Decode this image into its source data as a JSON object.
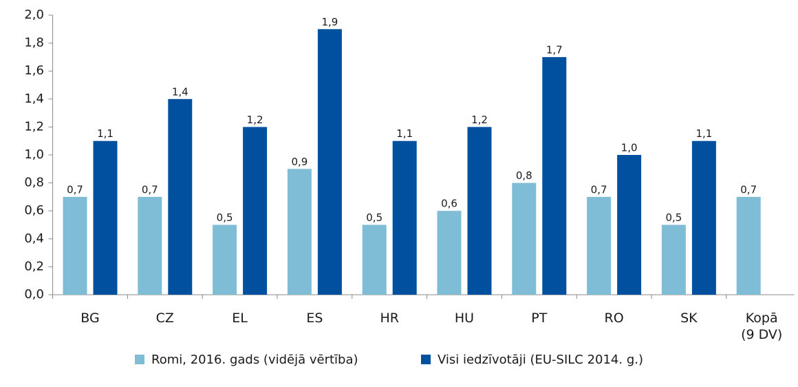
{
  "chart_data": {
    "type": "bar",
    "categories": [
      "BG",
      "CZ",
      "EL",
      "ES",
      "HR",
      "HU",
      "PT",
      "RO",
      "SK",
      "Kopā (9 DV)"
    ],
    "series": [
      {
        "name": "Romi, 2016. gads (vidējā vērtība)",
        "color": "#7fbcd6",
        "values": [
          0.7,
          0.7,
          0.5,
          0.9,
          0.5,
          0.6,
          0.8,
          0.7,
          0.5,
          0.7
        ],
        "value_labels": [
          "0,7",
          "0,7",
          "0,5",
          "0,9",
          "0,5",
          "0,6",
          "0,8",
          "0,7",
          "0,5",
          "0,7"
        ]
      },
      {
        "name": "Visi iedzīvotāji (EU-SILC 2014. g.)",
        "color": "#0050a0",
        "values": [
          1.1,
          1.4,
          1.2,
          1.9,
          1.1,
          1.2,
          1.7,
          1.0,
          1.1,
          null
        ],
        "value_labels": [
          "1,1",
          "1,4",
          "1,2",
          "1,9",
          "1,1",
          "1,2",
          "1,7",
          "1,0",
          "1,1",
          null
        ]
      }
    ],
    "ylim": [
      0,
      2
    ],
    "yticks": [
      {
        "value": 0,
        "label": "0,0"
      },
      {
        "value": 0.2,
        "label": "0,2"
      },
      {
        "value": 0.4,
        "label": "0,4"
      },
      {
        "value": 0.6,
        "label": "0,6"
      },
      {
        "value": 0.8,
        "label": "0,8"
      },
      {
        "value": 1.0,
        "label": "1,0"
      },
      {
        "value": 1.2,
        "label": "1,2"
      },
      {
        "value": 1.4,
        "label": "1,4"
      },
      {
        "value": 1.6,
        "label": "1,6"
      },
      {
        "value": 1.8,
        "label": "1,8"
      },
      {
        "value": 2.0,
        "label": "2,0"
      }
    ],
    "legend": "bottom"
  }
}
